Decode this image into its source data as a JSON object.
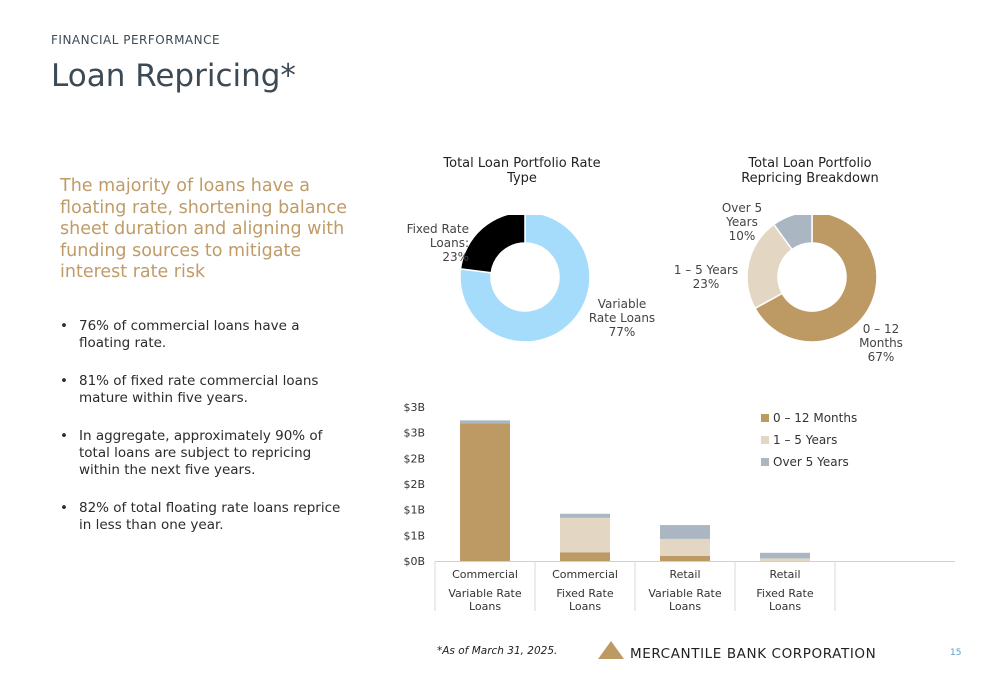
{
  "header": {
    "section": "FINANCIAL PERFORMANCE",
    "title": "Loan Repricing*"
  },
  "lead": "The majority of loans have a floating rate, shortening balance sheet duration and aligning with funding sources to mitigate interest rate risk",
  "bullets": [
    "76% of commercial loans have a floating rate.",
    "81% of fixed rate commercial loans mature within five years.",
    "In aggregate, approximately 90% of total loans are subject to repricing within the next five years.",
    "82% of total floating rate loans reprice in less than one year."
  ],
  "colors": {
    "variable": "#a6dcfb",
    "fixed": "#000000",
    "m0_12": "#bd9a64",
    "y1_5": "#e3d6c3",
    "over5": "#aab7c3",
    "accent": "#bf9b67",
    "title": "#3c4a55"
  },
  "chart_data": [
    {
      "type": "pie",
      "title": "Total Loan Portfolio Rate Type",
      "slices": [
        {
          "label": "Variable Rate Loans",
          "value": 77,
          "display": "77%"
        },
        {
          "label": "Fixed Rate Loans:",
          "value": 23,
          "display": "23%"
        }
      ]
    },
    {
      "type": "pie",
      "title": "Total Loan Portfolio Repricing Breakdown",
      "slices": [
        {
          "label": "0 – 12 Months",
          "value": 67,
          "display": "67%"
        },
        {
          "label": "1 – 5 Years",
          "value": 23,
          "display": "23%"
        },
        {
          "label": "Over 5 Years",
          "value": 10,
          "display": "10%"
        }
      ]
    },
    {
      "type": "bar",
      "stacked": true,
      "categories": [
        {
          "line1": "Commercial",
          "line2": "Variable Rate Loans"
        },
        {
          "line1": "Commercial",
          "line2": "Fixed Rate Loans"
        },
        {
          "line1": "Retail",
          "line2": "Variable Rate Loans"
        },
        {
          "line1": "Retail",
          "line2": "Fixed Rate Loans"
        }
      ],
      "series": [
        {
          "name": "0 – 12 Months",
          "values": [
            2.68,
            0.17,
            0.1,
            0.0
          ]
        },
        {
          "name": "1 – 5 Years",
          "values": [
            0.0,
            0.67,
            0.33,
            0.05
          ]
        },
        {
          "name": "Over 5 Years",
          "values": [
            0.06,
            0.08,
            0.27,
            0.11
          ]
        }
      ],
      "yticks": [
        "$0B",
        "$1B",
        "$1B",
        "$2B",
        "$2B",
        "$3B",
        "$3B"
      ],
      "ylim": [
        0,
        3
      ],
      "legend": "top-right"
    }
  ],
  "footer": {
    "note": "*As of March 31, 2025.",
    "company": "MERCANTILE BANK CORPORATION",
    "page": "15"
  }
}
